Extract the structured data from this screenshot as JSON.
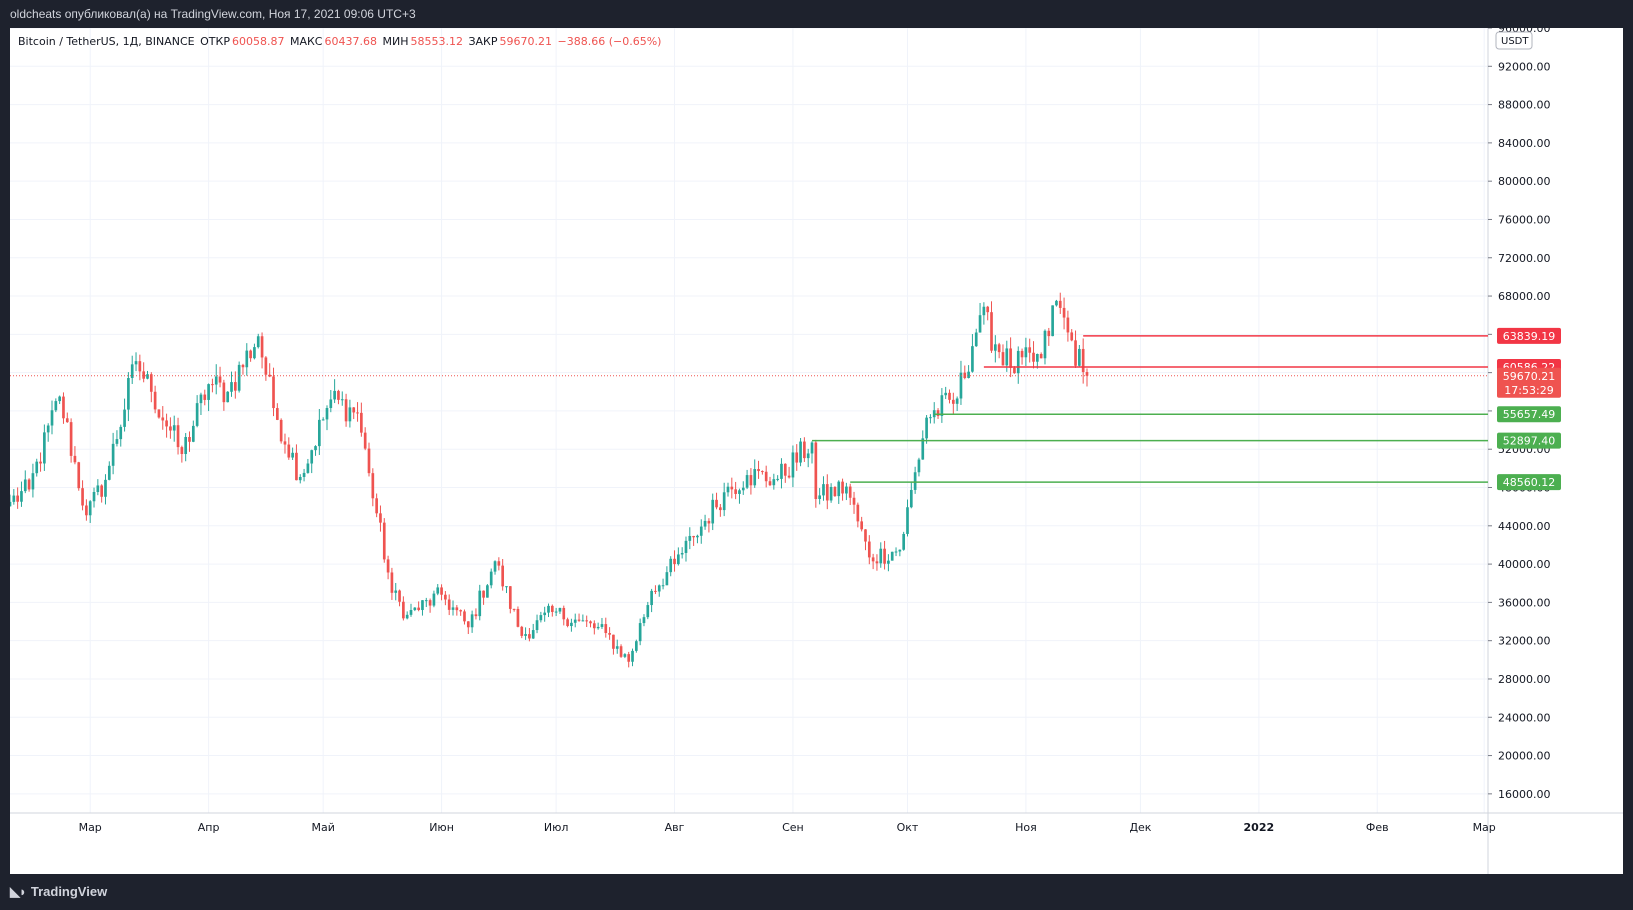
{
  "header": {
    "text": "oldcheats опубликовал(а) на TradingView.com, Ноя 17, 2021 09:06 UTC+3"
  },
  "footer": {
    "logo_text": "TradingView"
  },
  "legend": {
    "symbol": "Bitcoin / TetherUS, 1Д, BINANCE",
    "open_label": "ОТКР",
    "open": "60058.87",
    "high_label": "МАКС",
    "high": "60437.68",
    "low_label": "МИН",
    "low": "58553.12",
    "close_label": "ЗАКР",
    "close": "59670.21",
    "change": "−388.66 (−0.65%)"
  },
  "colors": {
    "up": "#26a69a",
    "down": "#ef5350",
    "resistance": "#f23645",
    "support": "#4caf50",
    "grid": "#f0f3fa",
    "axis_text": "#131722"
  },
  "chart_data": {
    "type": "candlestick",
    "timeframe": "1D",
    "currency": "USDT",
    "y_axis": {
      "min": 14000,
      "max": 96000,
      "ticks": [
        16000,
        20000,
        24000,
        28000,
        32000,
        36000,
        40000,
        44000,
        48000,
        52000,
        56000,
        60000,
        64000,
        68000,
        72000,
        76000,
        80000,
        84000,
        88000,
        92000,
        96000
      ],
      "tick_labels": [
        "16000.00",
        "20000.00",
        "24000.00",
        "28000.00",
        "32000.00",
        "36000.00",
        "40000.00",
        "44000.00",
        "48000.00",
        "52000.00",
        "56000.00",
        "60000.00",
        "64000.00",
        "68000.00",
        "72000.00",
        "76000.00",
        "80000.00",
        "84000.00",
        "88000.00",
        "92000.00",
        "96000.00"
      ]
    },
    "x_axis": {
      "start": "2021-02-08",
      "end": "2022-03-02",
      "labels": [
        {
          "date": "2021-03-01",
          "text": "Мар"
        },
        {
          "date": "2021-04-01",
          "text": "Апр"
        },
        {
          "date": "2021-05-01",
          "text": "Май"
        },
        {
          "date": "2021-06-01",
          "text": "Июн"
        },
        {
          "date": "2021-07-01",
          "text": "Июл"
        },
        {
          "date": "2021-08-01",
          "text": "Авг"
        },
        {
          "date": "2021-09-01",
          "text": "Сен"
        },
        {
          "date": "2021-10-01",
          "text": "Окт"
        },
        {
          "date": "2021-11-01",
          "text": "Ноя"
        },
        {
          "date": "2021-12-01",
          "text": "Дек"
        },
        {
          "date": "2022-01-01",
          "text": "2022"
        },
        {
          "date": "2022-02-01",
          "text": "Фев"
        },
        {
          "date": "2022-03-01",
          "text": "Мар"
        }
      ]
    },
    "close_anchors": [
      [
        "2021-02-08",
        46500
      ],
      [
        "2021-02-13",
        47800
      ],
      [
        "2021-02-21",
        57500
      ],
      [
        "2021-02-28",
        45100
      ],
      [
        "2021-03-05",
        48800
      ],
      [
        "2021-03-13",
        61200
      ],
      [
        "2021-03-17",
        58000
      ],
      [
        "2021-03-25",
        51500
      ],
      [
        "2021-04-01",
        58800
      ],
      [
        "2021-04-06",
        58000
      ],
      [
        "2021-04-14",
        63800
      ],
      [
        "2021-04-18",
        56300
      ],
      [
        "2021-04-25",
        49100
      ],
      [
        "2021-05-03",
        57200
      ],
      [
        "2021-05-10",
        55800
      ],
      [
        "2021-05-13",
        49500
      ],
      [
        "2021-05-19",
        37000
      ],
      [
        "2021-05-23",
        34700
      ],
      [
        "2021-06-01",
        36800
      ],
      [
        "2021-06-08",
        33400
      ],
      [
        "2021-06-15",
        40300
      ],
      [
        "2021-06-22",
        32500
      ],
      [
        "2021-06-30",
        35000
      ],
      [
        "2021-07-06",
        34200
      ],
      [
        "2021-07-14",
        32800
      ],
      [
        "2021-07-20",
        29800
      ],
      [
        "2021-07-26",
        37200
      ],
      [
        "2021-08-01",
        40000
      ],
      [
        "2021-08-06",
        42800
      ],
      [
        "2021-08-14",
        47500
      ],
      [
        "2021-08-20",
        49300
      ],
      [
        "2021-08-28",
        48900
      ],
      [
        "2021-09-06",
        52700
      ],
      [
        "2021-09-07",
        46800
      ],
      [
        "2021-09-15",
        48100
      ],
      [
        "2021-09-21",
        40700
      ],
      [
        "2021-09-29",
        41500
      ],
      [
        "2021-10-06",
        55300
      ],
      [
        "2021-10-14",
        57300
      ],
      [
        "2021-10-20",
        66000
      ],
      [
        "2021-10-28",
        60500
      ],
      [
        "2021-11-05",
        61500
      ],
      [
        "2021-11-09",
        67500
      ],
      [
        "2021-11-12",
        64200
      ],
      [
        "2021-11-16",
        60060
      ],
      [
        "2021-11-17",
        59670
      ]
    ],
    "last_candle": {
      "date": "2021-11-17",
      "open": 60058.87,
      "high": 60437.68,
      "low": 58553.12,
      "close": 59670.21
    },
    "current_price_line": 59670.21,
    "levels": [
      {
        "name": "resistance-1",
        "kind": "resistance",
        "price": 63839.19,
        "label": "63839.19",
        "from": "2021-11-16"
      },
      {
        "name": "resistance-2",
        "kind": "resistance",
        "price": 60586.22,
        "label": "60586.22",
        "from": "2021-10-21"
      },
      {
        "name": "support-1",
        "kind": "support",
        "price": 55657.49,
        "label": "55657.49",
        "from": "2021-10-08"
      },
      {
        "name": "support-2",
        "kind": "support",
        "price": 52897.4,
        "label": "52897.40",
        "from": "2021-09-06"
      },
      {
        "name": "support-3",
        "kind": "support",
        "price": 48560.12,
        "label": "48560.12",
        "from": "2021-09-16"
      }
    ],
    "price_badge": {
      "price": "59670.21",
      "countdown": "17:53:29"
    }
  }
}
